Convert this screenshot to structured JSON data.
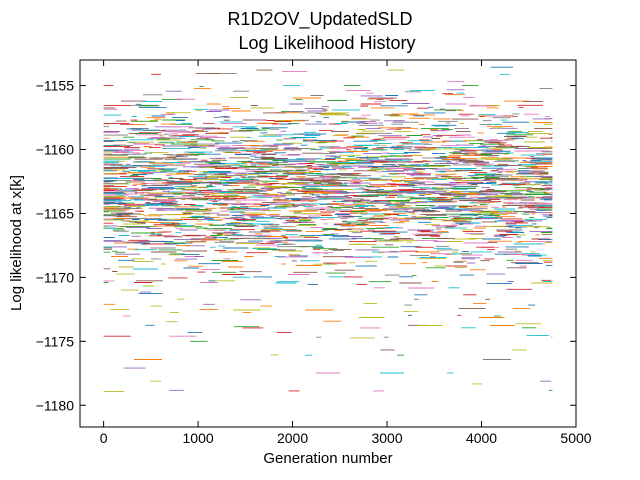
{
  "chart_data": {
    "type": "line",
    "title": "R1D2OV_UpdatedSLD",
    "subtitle": "Log Likelihood History",
    "xlabel": "Generation number",
    "ylabel": "Log likelihood at x[k]",
    "xlim": [
      -250,
      5000
    ],
    "ylim": [
      -1181.7,
      -1153.0
    ],
    "xticks": [
      0,
      1000,
      2000,
      3000,
      4000,
      5000
    ],
    "xtick_labels": [
      "0",
      "1000",
      "2000",
      "3000",
      "4000",
      "5000"
    ],
    "yticks": [
      -1155,
      -1160,
      -1165,
      -1170,
      -1175,
      -1180
    ],
    "ytick_labels": [
      "−1155",
      "−1160",
      "−1165",
      "−1170",
      "−1175",
      "−1180"
    ],
    "grid": false,
    "legend": "none",
    "generations": [
      0,
      4750
    ],
    "series_count": 120,
    "band_center": -1162.8,
    "band_halfwidth": 3.2,
    "colors": [
      "#1f77b4",
      "#ff7f0e",
      "#2ca02c",
      "#d62728",
      "#9467bd",
      "#8c564b",
      "#e377c2",
      "#7f7f7f",
      "#bcbd22",
      "#17becf"
    ]
  }
}
